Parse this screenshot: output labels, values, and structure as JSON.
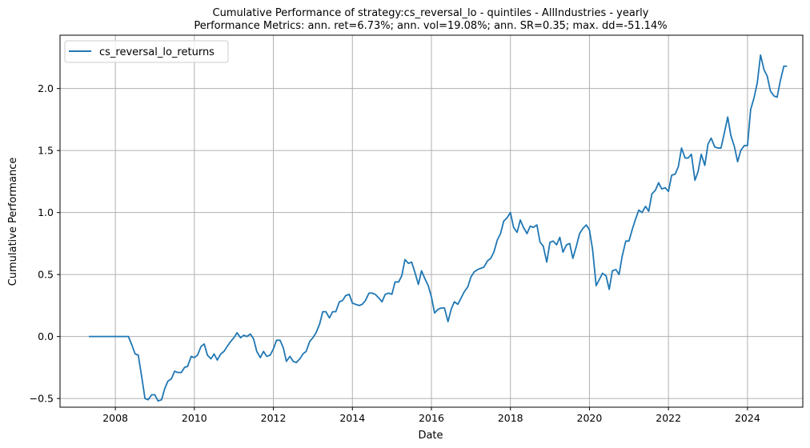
{
  "chart_data": {
    "type": "line",
    "title": "Cumulative Performance of strategy:cs_reversal_lo - quintiles - AllIndustries - yearly",
    "subtitle": "Performance Metrics: ann. ret=6.73%; ann. vol=19.08%; ann. SR=0.35; max. dd=-51.14%",
    "xlabel": "Date",
    "ylabel": "Cumulative Performance",
    "xlim": [
      2006.6,
      2025.4
    ],
    "ylim": [
      -0.57,
      2.43
    ],
    "x_ticks": [
      2008,
      2010,
      2012,
      2014,
      2016,
      2018,
      2020,
      2022,
      2024
    ],
    "x_tick_labels": [
      "2008",
      "2010",
      "2012",
      "2014",
      "2016",
      "2018",
      "2020",
      "2022",
      "2024"
    ],
    "y_ticks": [
      -0.5,
      0.0,
      0.5,
      1.0,
      1.5,
      2.0
    ],
    "y_tick_labels": [
      "−0.5",
      "0.0",
      "0.5",
      "1.0",
      "1.5",
      "2.0"
    ],
    "grid": true,
    "legend_position": "top-left",
    "series": [
      {
        "name": "cs_reversal_lo_returns",
        "color": "#1f77b4",
        "points": [
          [
            2007.33,
            0.0
          ],
          [
            2008.25,
            0.0
          ],
          [
            2008.33,
            0.0
          ],
          [
            2008.42,
            -0.07
          ],
          [
            2008.5,
            -0.14
          ],
          [
            2008.58,
            -0.15
          ],
          [
            2008.67,
            -0.33
          ],
          [
            2008.75,
            -0.5
          ],
          [
            2008.83,
            -0.51
          ],
          [
            2008.92,
            -0.47
          ],
          [
            2009.0,
            -0.47
          ],
          [
            2009.08,
            -0.52
          ],
          [
            2009.17,
            -0.51
          ],
          [
            2009.25,
            -0.42
          ],
          [
            2009.33,
            -0.36
          ],
          [
            2009.42,
            -0.34
          ],
          [
            2009.5,
            -0.28
          ],
          [
            2009.58,
            -0.29
          ],
          [
            2009.67,
            -0.29
          ],
          [
            2009.75,
            -0.25
          ],
          [
            2009.83,
            -0.24
          ],
          [
            2009.92,
            -0.16
          ],
          [
            2010.0,
            -0.17
          ],
          [
            2010.08,
            -0.15
          ],
          [
            2010.17,
            -0.08
          ],
          [
            2010.25,
            -0.06
          ],
          [
            2010.33,
            -0.15
          ],
          [
            2010.42,
            -0.18
          ],
          [
            2010.5,
            -0.14
          ],
          [
            2010.58,
            -0.19
          ],
          [
            2010.67,
            -0.14
          ],
          [
            2010.75,
            -0.12
          ],
          [
            2010.83,
            -0.08
          ],
          [
            2010.92,
            -0.04
          ],
          [
            2011.0,
            -0.01
          ],
          [
            2011.08,
            0.03
          ],
          [
            2011.17,
            -0.01
          ],
          [
            2011.25,
            0.01
          ],
          [
            2011.33,
            0.0
          ],
          [
            2011.42,
            0.02
          ],
          [
            2011.5,
            -0.02
          ],
          [
            2011.58,
            -0.12
          ],
          [
            2011.67,
            -0.17
          ],
          [
            2011.75,
            -0.12
          ],
          [
            2011.83,
            -0.16
          ],
          [
            2011.92,
            -0.15
          ],
          [
            2012.0,
            -0.1
          ],
          [
            2012.08,
            -0.03
          ],
          [
            2012.17,
            -0.03
          ],
          [
            2012.25,
            -0.09
          ],
          [
            2012.33,
            -0.2
          ],
          [
            2012.42,
            -0.16
          ],
          [
            2012.5,
            -0.2
          ],
          [
            2012.58,
            -0.21
          ],
          [
            2012.67,
            -0.18
          ],
          [
            2012.75,
            -0.14
          ],
          [
            2012.83,
            -0.12
          ],
          [
            2012.92,
            -0.04
          ],
          [
            2013.0,
            -0.01
          ],
          [
            2013.08,
            0.03
          ],
          [
            2013.17,
            0.1
          ],
          [
            2013.25,
            0.2
          ],
          [
            2013.33,
            0.2
          ],
          [
            2013.42,
            0.15
          ],
          [
            2013.5,
            0.2
          ],
          [
            2013.58,
            0.2
          ],
          [
            2013.67,
            0.28
          ],
          [
            2013.75,
            0.29
          ],
          [
            2013.83,
            0.33
          ],
          [
            2013.92,
            0.34
          ],
          [
            2014.0,
            0.27
          ],
          [
            2014.08,
            0.26
          ],
          [
            2014.17,
            0.25
          ],
          [
            2014.25,
            0.26
          ],
          [
            2014.33,
            0.29
          ],
          [
            2014.42,
            0.35
          ],
          [
            2014.5,
            0.35
          ],
          [
            2014.58,
            0.34
          ],
          [
            2014.67,
            0.31
          ],
          [
            2014.75,
            0.28
          ],
          [
            2014.83,
            0.34
          ],
          [
            2014.92,
            0.35
          ],
          [
            2015.0,
            0.34
          ],
          [
            2015.08,
            0.44
          ],
          [
            2015.17,
            0.44
          ],
          [
            2015.25,
            0.49
          ],
          [
            2015.33,
            0.62
          ],
          [
            2015.42,
            0.59
          ],
          [
            2015.5,
            0.6
          ],
          [
            2015.58,
            0.52
          ],
          [
            2015.67,
            0.42
          ],
          [
            2015.75,
            0.53
          ],
          [
            2015.83,
            0.47
          ],
          [
            2015.92,
            0.41
          ],
          [
            2016.0,
            0.32
          ],
          [
            2016.08,
            0.19
          ],
          [
            2016.17,
            0.22
          ],
          [
            2016.25,
            0.23
          ],
          [
            2016.33,
            0.23
          ],
          [
            2016.42,
            0.12
          ],
          [
            2016.5,
            0.22
          ],
          [
            2016.58,
            0.28
          ],
          [
            2016.67,
            0.26
          ],
          [
            2016.75,
            0.31
          ],
          [
            2016.83,
            0.36
          ],
          [
            2016.92,
            0.4
          ],
          [
            2017.0,
            0.48
          ],
          [
            2017.08,
            0.52
          ],
          [
            2017.17,
            0.54
          ],
          [
            2017.25,
            0.55
          ],
          [
            2017.33,
            0.56
          ],
          [
            2017.42,
            0.61
          ],
          [
            2017.5,
            0.63
          ],
          [
            2017.58,
            0.68
          ],
          [
            2017.67,
            0.78
          ],
          [
            2017.75,
            0.83
          ],
          [
            2017.83,
            0.93
          ],
          [
            2017.92,
            0.96
          ],
          [
            2018.0,
            1.0
          ],
          [
            2018.08,
            0.88
          ],
          [
            2018.17,
            0.84
          ],
          [
            2018.25,
            0.94
          ],
          [
            2018.33,
            0.88
          ],
          [
            2018.42,
            0.83
          ],
          [
            2018.5,
            0.89
          ],
          [
            2018.58,
            0.88
          ],
          [
            2018.67,
            0.9
          ],
          [
            2018.75,
            0.76
          ],
          [
            2018.83,
            0.73
          ],
          [
            2018.92,
            0.6
          ],
          [
            2019.0,
            0.76
          ],
          [
            2019.08,
            0.77
          ],
          [
            2019.17,
            0.74
          ],
          [
            2019.25,
            0.8
          ],
          [
            2019.33,
            0.68
          ],
          [
            2019.42,
            0.74
          ],
          [
            2019.5,
            0.75
          ],
          [
            2019.58,
            0.63
          ],
          [
            2019.67,
            0.73
          ],
          [
            2019.75,
            0.83
          ],
          [
            2019.83,
            0.87
          ],
          [
            2019.92,
            0.9
          ],
          [
            2020.0,
            0.86
          ],
          [
            2020.08,
            0.7
          ],
          [
            2020.17,
            0.41
          ],
          [
            2020.25,
            0.46
          ],
          [
            2020.33,
            0.51
          ],
          [
            2020.42,
            0.49
          ],
          [
            2020.5,
            0.38
          ],
          [
            2020.58,
            0.53
          ],
          [
            2020.67,
            0.54
          ],
          [
            2020.75,
            0.5
          ],
          [
            2020.83,
            0.65
          ],
          [
            2020.92,
            0.77
          ],
          [
            2021.0,
            0.77
          ],
          [
            2021.08,
            0.86
          ],
          [
            2021.17,
            0.95
          ],
          [
            2021.25,
            1.02
          ],
          [
            2021.33,
            1.0
          ],
          [
            2021.42,
            1.05
          ],
          [
            2021.5,
            1.01
          ],
          [
            2021.58,
            1.15
          ],
          [
            2021.67,
            1.18
          ],
          [
            2021.75,
            1.24
          ],
          [
            2021.83,
            1.19
          ],
          [
            2021.92,
            1.2
          ],
          [
            2022.0,
            1.17
          ],
          [
            2022.08,
            1.3
          ],
          [
            2022.17,
            1.31
          ],
          [
            2022.25,
            1.37
          ],
          [
            2022.33,
            1.52
          ],
          [
            2022.42,
            1.44
          ],
          [
            2022.5,
            1.44
          ],
          [
            2022.58,
            1.47
          ],
          [
            2022.67,
            1.26
          ],
          [
            2022.75,
            1.33
          ],
          [
            2022.83,
            1.47
          ],
          [
            2022.92,
            1.38
          ],
          [
            2023.0,
            1.55
          ],
          [
            2023.08,
            1.6
          ],
          [
            2023.17,
            1.53
          ],
          [
            2023.25,
            1.52
          ],
          [
            2023.33,
            1.52
          ],
          [
            2023.42,
            1.65
          ],
          [
            2023.5,
            1.77
          ],
          [
            2023.58,
            1.62
          ],
          [
            2023.67,
            1.53
          ],
          [
            2023.75,
            1.41
          ],
          [
            2023.83,
            1.5
          ],
          [
            2023.92,
            1.54
          ],
          [
            2024.0,
            1.54
          ],
          [
            2024.08,
            1.83
          ],
          [
            2024.17,
            1.93
          ],
          [
            2024.25,
            2.05
          ],
          [
            2024.33,
            2.27
          ],
          [
            2024.42,
            2.15
          ],
          [
            2024.5,
            2.1
          ],
          [
            2024.58,
            1.98
          ],
          [
            2024.67,
            1.94
          ],
          [
            2024.75,
            1.93
          ],
          [
            2024.83,
            2.06
          ],
          [
            2024.92,
            2.18
          ],
          [
            2025.0,
            2.18
          ]
        ]
      }
    ]
  }
}
